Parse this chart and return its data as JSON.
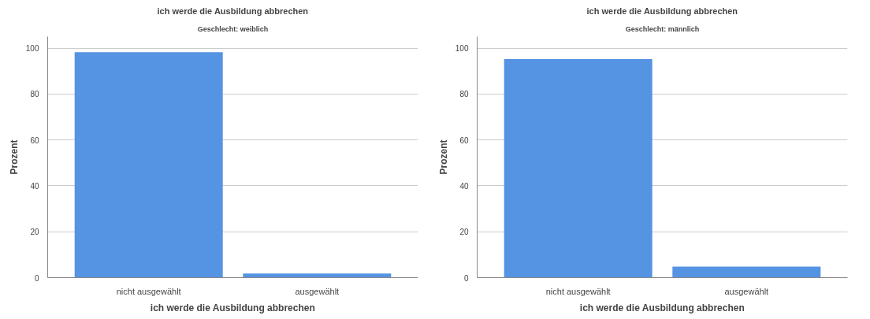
{
  "chart_data": [
    {
      "type": "bar",
      "title": "ich werde die Ausbildung abbrechen",
      "subtitle": "Geschlecht: weiblich",
      "xlabel": "ich werde die Ausbildung abbrechen",
      "ylabel": "Prozent",
      "categories": [
        "nicht ausgewählt",
        "ausgewählt"
      ],
      "values": [
        98.2,
        1.8
      ],
      "color": "#5593e3",
      "ylim": [
        0,
        105
      ],
      "yticks": [
        0,
        20,
        40,
        60,
        80,
        100
      ],
      "grid": "y"
    },
    {
      "type": "bar",
      "title": "ich werde die Ausbildung abbrechen",
      "subtitle": "Geschlecht: männlich",
      "xlabel": "ich werde die Ausbildung abbrechen",
      "ylabel": "Prozent",
      "categories": [
        "nicht ausgewählt",
        "ausgewählt"
      ],
      "values": [
        95.2,
        4.8
      ],
      "color": "#5593e3",
      "ylim": [
        0,
        105
      ],
      "yticks": [
        0,
        20,
        40,
        60,
        80,
        100
      ],
      "grid": "y"
    }
  ]
}
